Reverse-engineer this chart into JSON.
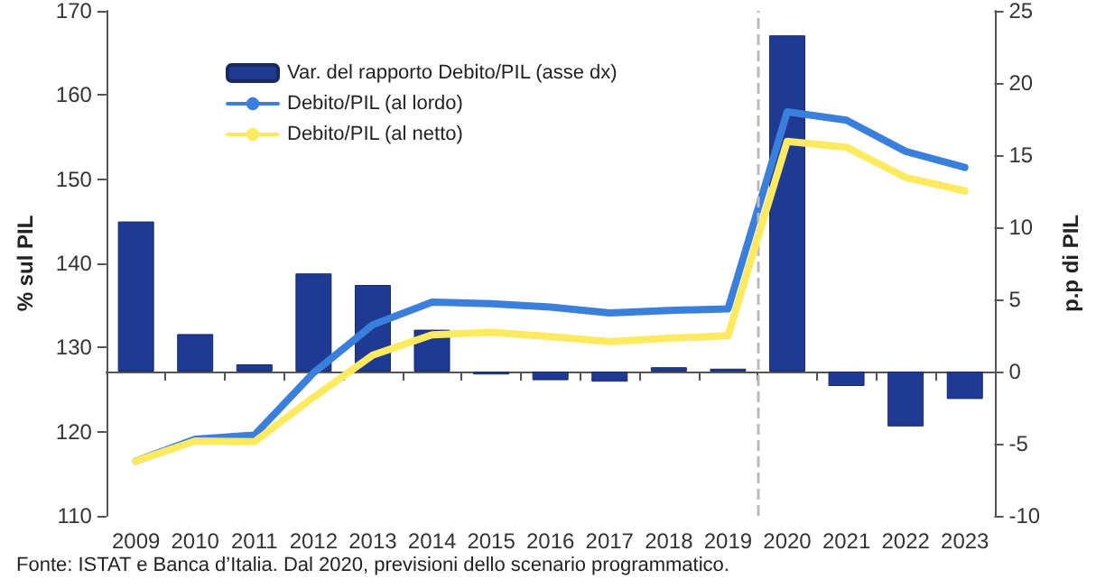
{
  "chart_data": {
    "type": "line",
    "x": [
      2009,
      2010,
      2011,
      2012,
      2013,
      2014,
      2015,
      2016,
      2017,
      2018,
      2019,
      2020,
      2021,
      2022,
      2023
    ],
    "xlim": [
      2008.5,
      2023.5
    ],
    "xticks": [
      2009,
      2010,
      2011,
      2012,
      2013,
      2014,
      2015,
      2016,
      2017,
      2018,
      2019,
      2020,
      2021,
      2022,
      2023
    ],
    "series": [
      {
        "name": "Var. del rapporto Debito/PIL (asse dx)",
        "type": "bar",
        "axis": "y2",
        "color": "#1f3a93",
        "values": [
          10.4,
          2.6,
          0.5,
          6.8,
          6.0,
          2.9,
          -0.2,
          -0.6,
          -0.7,
          0.3,
          0.2,
          23.3,
          -1.0,
          -3.8,
          -1.9
        ]
      },
      {
        "name": "Debito/PIL (al lordo)",
        "color": "#3a7fdc",
        "values": [
          116.5,
          119.1,
          119.6,
          127.0,
          132.7,
          135.4,
          135.2,
          134.8,
          134.1,
          134.4,
          134.6,
          158.0,
          157.0,
          153.3,
          151.4
        ]
      },
      {
        "name": "Debito/PIL (al netto)",
        "color": "#fdea60",
        "values": [
          116.5,
          118.9,
          118.8,
          124.1,
          129.1,
          131.5,
          131.8,
          131.3,
          130.7,
          131.1,
          131.4,
          154.5,
          153.8,
          150.2,
          148.6
        ]
      }
    ],
    "ylabel": "% sul PIL",
    "y2label": "p.p di PIL",
    "ylim": [
      110,
      170
    ],
    "yticks": [
      110,
      120,
      130,
      140,
      150,
      160,
      170
    ],
    "y2lim": [
      -10,
      25
    ],
    "y2ticks": [
      -10,
      -5,
      0,
      5,
      10,
      15,
      20,
      25
    ],
    "ref_lines": [
      {
        "axis": "x",
        "value": 2019.5,
        "color": "#bbbbbb",
        "line_style": "dashed"
      }
    ],
    "legend": "top left",
    "marker": "none",
    "annotations": [
      "Fonte: ISTAT e Banca d’Italia. Dal 2020, previsioni dello scenario programmatico."
    ]
  }
}
